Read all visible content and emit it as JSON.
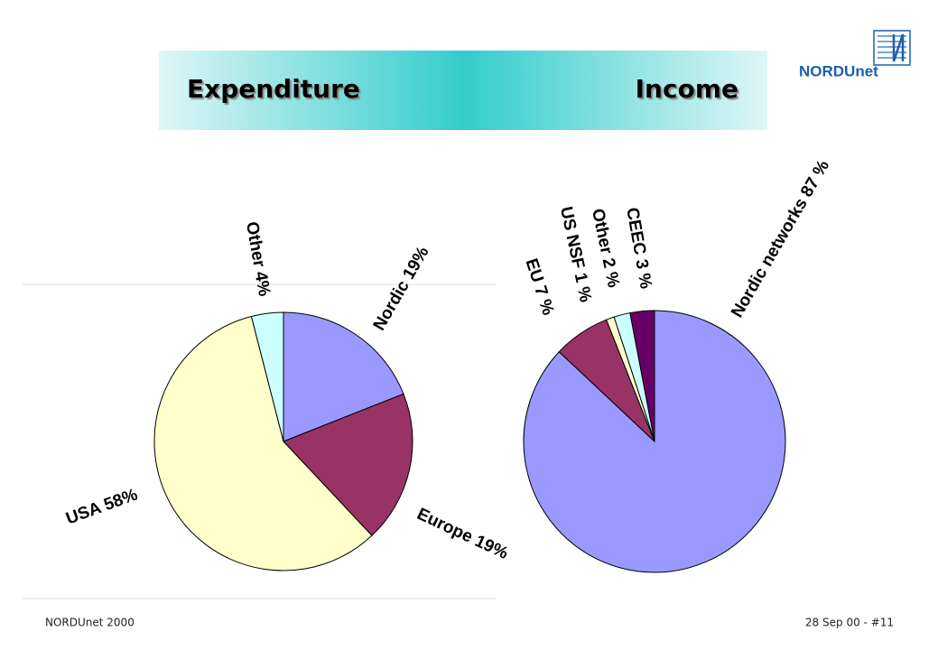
{
  "chart_data": [
    {
      "type": "pie",
      "title": "Expenditure",
      "values": [
        19,
        19,
        58,
        4
      ],
      "value_labels": [
        "Nordic 19%",
        "Europe 19%",
        "USA 58%",
        "Other 4%"
      ],
      "colors": [
        "#9999ff",
        "#993366",
        "#ffffcc",
        "#ccffff"
      ]
    },
    {
      "type": "pie",
      "title": "Income",
      "values": [
        87,
        7,
        1,
        2,
        3
      ],
      "value_labels": [
        "Nordic networks 87 %",
        "EU 7 %",
        "US NSF 1 %",
        "Other 2 %",
        "CEEC 3 %"
      ],
      "colors": [
        "#9999ff",
        "#993366",
        "#ffffcc",
        "#ccffff",
        "#660066"
      ]
    }
  ],
  "logo": "NORDUnet",
  "footer": {
    "left": "NORDUnet 2000",
    "right": "28 Sep 00 - #11"
  }
}
